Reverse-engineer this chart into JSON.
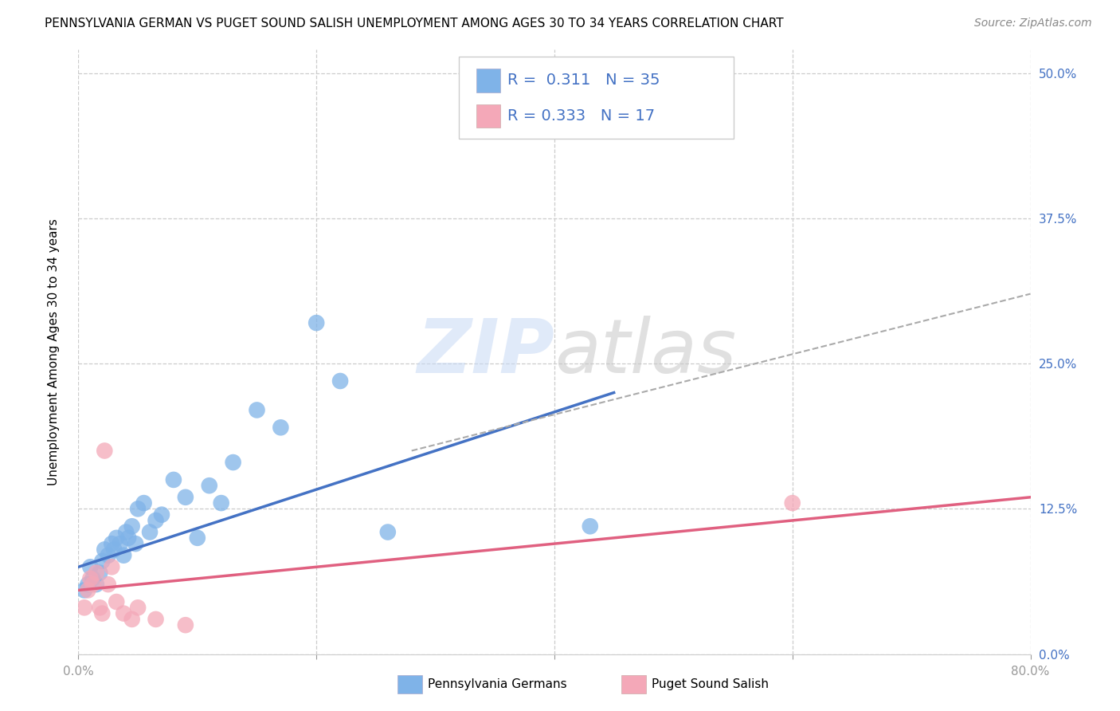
{
  "title": "PENNSYLVANIA GERMAN VS PUGET SOUND SALISH UNEMPLOYMENT AMONG AGES 30 TO 34 YEARS CORRELATION CHART",
  "source": "Source: ZipAtlas.com",
  "ylabel": "Unemployment Among Ages 30 to 34 years",
  "background_color": "#ffffff",
  "watermark": "ZIPatlas",
  "legend_val1": "0.311",
  "legend_nval1": "35",
  "legend_val2": "0.333",
  "legend_nval2": "17",
  "blue_color": "#7fb3e8",
  "pink_color": "#f4a8b8",
  "line_blue": "#4472c4",
  "line_pink": "#e06080",
  "line_dashed_color": "#aaaaaa",
  "text_blue": "#4472c4",
  "xlim": [
    0.0,
    0.8
  ],
  "ylim": [
    0.0,
    0.52
  ],
  "yticks": [
    0.0,
    0.125,
    0.25,
    0.375,
    0.5
  ],
  "xticks": [
    0.0,
    0.2,
    0.4,
    0.6,
    0.8
  ],
  "scatter_blue_x": [
    0.005,
    0.008,
    0.01,
    0.012,
    0.015,
    0.018,
    0.02,
    0.022,
    0.025,
    0.028,
    0.03,
    0.032,
    0.035,
    0.038,
    0.04,
    0.042,
    0.045,
    0.048,
    0.05,
    0.055,
    0.06,
    0.065,
    0.07,
    0.08,
    0.09,
    0.1,
    0.11,
    0.12,
    0.13,
    0.15,
    0.17,
    0.2,
    0.22,
    0.26,
    0.43
  ],
  "scatter_blue_y": [
    0.055,
    0.06,
    0.075,
    0.065,
    0.06,
    0.07,
    0.08,
    0.09,
    0.085,
    0.095,
    0.09,
    0.1,
    0.095,
    0.085,
    0.105,
    0.1,
    0.11,
    0.095,
    0.125,
    0.13,
    0.105,
    0.115,
    0.12,
    0.15,
    0.135,
    0.1,
    0.145,
    0.13,
    0.165,
    0.21,
    0.195,
    0.285,
    0.235,
    0.105,
    0.11
  ],
  "scatter_pink_x": [
    0.005,
    0.008,
    0.01,
    0.012,
    0.015,
    0.018,
    0.02,
    0.025,
    0.028,
    0.032,
    0.038,
    0.045,
    0.05,
    0.065,
    0.09,
    0.6,
    0.022
  ],
  "scatter_pink_y": [
    0.04,
    0.055,
    0.065,
    0.06,
    0.07,
    0.04,
    0.035,
    0.06,
    0.075,
    0.045,
    0.035,
    0.03,
    0.04,
    0.03,
    0.025,
    0.13,
    0.175
  ],
  "blue_line_x": [
    0.0,
    0.45
  ],
  "blue_line_y": [
    0.075,
    0.225
  ],
  "dashed_line_x": [
    0.28,
    0.8
  ],
  "dashed_line_y": [
    0.175,
    0.31
  ],
  "pink_line_x": [
    0.0,
    0.8
  ],
  "pink_line_y": [
    0.055,
    0.135
  ],
  "title_fontsize": 11,
  "axis_label_fontsize": 11,
  "tick_fontsize": 11,
  "legend_fontsize": 14,
  "source_fontsize": 10
}
